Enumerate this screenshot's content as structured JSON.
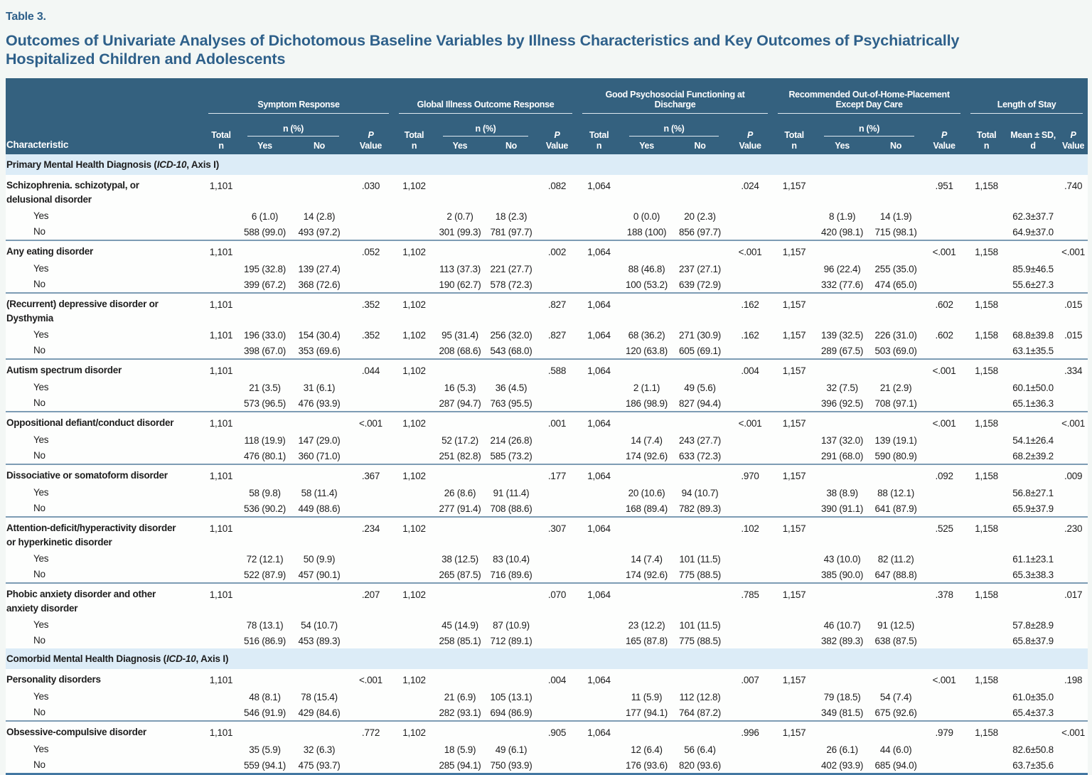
{
  "page": {
    "label": "Table 3.",
    "title": "Outcomes of Univariate Analyses of Dichotomous Baseline Variables by Illness Characteristics and Key Outcomes of Psychiatrically\nHospitalized Children and Adolescents"
  },
  "colors": {
    "header_band": "#34617f",
    "section_band": "#dcecf7",
    "title_blue": "#2e608a",
    "row_rule": "#7d9cb4",
    "bottom_rule": "#4377a2"
  },
  "header": {
    "characteristic": "Characteristic",
    "groups": [
      {
        "label": "Symptom Response"
      },
      {
        "label": "Global Illness Outcome Response"
      },
      {
        "label": "Good Psychosocial Functioning at\nDischarge"
      },
      {
        "label": "Recommended Out-of-Home-Placement\nExcept Day Care"
      },
      {
        "label": "Length of Stay"
      }
    ],
    "total": "Total",
    "n": "n",
    "npct": "n (%)",
    "yes": "Yes",
    "no": "No",
    "p": "P",
    "value": "Value",
    "mean": "Mean ± SD,",
    "mean2": "d"
  },
  "rows": [
    {
      "type": "section",
      "pre": "Primary Mental Health Diagnosis (",
      "italic": "ICD-10",
      "post": ", Axis I)"
    },
    {
      "type": "head",
      "sep": false,
      "label": "Schizophrenia. schizotypal, or\ndelusional disorder",
      "c": [
        "1,101",
        "",
        "",
        ".030",
        "1,102",
        "",
        "",
        ".082",
        "1,064",
        "",
        "",
        ".024",
        "1,157",
        "",
        "",
        ".951",
        "1,158",
        "",
        ".740"
      ]
    },
    {
      "type": "sub",
      "label": "Yes",
      "c": [
        "",
        "6 (1.0)",
        "14 (2.8)",
        "",
        "",
        "2 (0.7)",
        "18 (2.3)",
        "",
        "",
        "0 (0.0)",
        "20 (2.3)",
        "",
        "",
        "8 (1.9)",
        "14 (1.9)",
        "",
        "",
        "62.3±37.7",
        ""
      ]
    },
    {
      "type": "sub",
      "label": "No",
      "c": [
        "",
        "588 (99.0)",
        "493 (97.2)",
        "",
        "",
        "301 (99.3)",
        "781 (97.7)",
        "",
        "",
        "188 (100)",
        "856 (97.7)",
        "",
        "",
        "420 (98.1)",
        "715 (98.1)",
        "",
        "",
        "64.9±37.0",
        ""
      ]
    },
    {
      "type": "head",
      "sep": true,
      "label": "Any eating disorder",
      "c": [
        "1,101",
        "",
        "",
        ".052",
        "1,102",
        "",
        "",
        ".002",
        "1,064",
        "",
        "",
        "<.001",
        "1,157",
        "",
        "",
        "<.001",
        "1,158",
        "",
        "<.001"
      ]
    },
    {
      "type": "sub",
      "label": "Yes",
      "c": [
        "",
        "195 (32.8)",
        "139 (27.4)",
        "",
        "",
        "113 (37.3)",
        "221 (27.7)",
        "",
        "",
        "88 (46.8)",
        "237 (27.1)",
        "",
        "",
        "96 (22.4)",
        "255 (35.0)",
        "",
        "",
        "85.9±46.5",
        ""
      ]
    },
    {
      "type": "sub",
      "label": "No",
      "c": [
        "",
        "399 (67.2)",
        "368 (72.6)",
        "",
        "",
        "190 (62.7)",
        "578 (72.3)",
        "",
        "",
        "100 (53.2)",
        "639 (72.9)",
        "",
        "",
        "332 (77.6)",
        "474 (65.0)",
        "",
        "",
        "55.6±27.3",
        ""
      ]
    },
    {
      "type": "head",
      "sep": true,
      "label": "(Recurrent) depressive disorder or\nDysthymia",
      "c": [
        "1,101",
        "",
        "",
        ".352",
        "1,102",
        "",
        "",
        ".827",
        "1,064",
        "",
        "",
        ".162",
        "1,157",
        "",
        "",
        ".602",
        "1,158",
        "",
        ".015"
      ]
    },
    {
      "type": "sub",
      "label": "Yes",
      "c": [
        "1,101",
        "196 (33.0)",
        "154 (30.4)",
        ".352",
        "1,102",
        "95 (31.4)",
        "256 (32.0)",
        ".827",
        "1,064",
        "68 (36.2)",
        "271 (30.9)",
        ".162",
        "1,157",
        "139 (32.5)",
        "226 (31.0)",
        ".602",
        "1,158",
        "68.8±39.8",
        ".015"
      ]
    },
    {
      "type": "sub",
      "label": "No",
      "c": [
        "",
        "398 (67.0)",
        "353 (69.6)",
        "",
        "",
        "208 (68.6)",
        "543 (68.0)",
        "",
        "",
        "120 (63.8)",
        "605 (69.1)",
        "",
        "",
        "289 (67.5)",
        "503 (69.0)",
        "",
        "",
        "63.1±35.5",
        ""
      ]
    },
    {
      "type": "head",
      "sep": true,
      "label": "Autism spectrum disorder",
      "c": [
        "1,101",
        "",
        "",
        ".044",
        "1,102",
        "",
        "",
        ".588",
        "1,064",
        "",
        "",
        ".004",
        "1,157",
        "",
        "",
        "<.001",
        "1,158",
        "",
        ".334"
      ]
    },
    {
      "type": "sub",
      "label": "Yes",
      "c": [
        "",
        "21 (3.5)",
        "31 (6.1)",
        "",
        "",
        "16 (5.3)",
        "36 (4.5)",
        "",
        "",
        "2 (1.1)",
        "49 (5.6)",
        "",
        "",
        "32 (7.5)",
        "21 (2.9)",
        "",
        "",
        "60.1±50.0",
        ""
      ]
    },
    {
      "type": "sub",
      "label": "No",
      "c": [
        "",
        "573 (96.5)",
        "476 (93.9)",
        "",
        "",
        "287 (94.7)",
        "763 (95.5)",
        "",
        "",
        "186 (98.9)",
        "827 (94.4)",
        "",
        "",
        "396 (92.5)",
        "708 (97.1)",
        "",
        "",
        "65.1±36.3",
        ""
      ]
    },
    {
      "type": "head",
      "sep": true,
      "label": "Oppositional defiant/conduct disorder",
      "c": [
        "1,101",
        "",
        "",
        "<.001",
        "1,102",
        "",
        "",
        ".001",
        "1,064",
        "",
        "",
        "<.001",
        "1,157",
        "",
        "",
        "<.001",
        "1,158",
        "",
        "<.001"
      ]
    },
    {
      "type": "sub",
      "label": "Yes",
      "c": [
        "",
        "118 (19.9)",
        "147 (29.0)",
        "",
        "",
        "52 (17.2)",
        "214 (26.8)",
        "",
        "",
        "14 (7.4)",
        "243 (27.7)",
        "",
        "",
        "137 (32.0)",
        "139 (19.1)",
        "",
        "",
        "54.1±26.4",
        ""
      ]
    },
    {
      "type": "sub",
      "label": "No",
      "c": [
        "",
        "476 (80.1)",
        "360 (71.0)",
        "",
        "",
        "251 (82.8)",
        "585 (73.2)",
        "",
        "",
        "174 (92.6)",
        "633 (72.3)",
        "",
        "",
        "291 (68.0)",
        "590 (80.9)",
        "",
        "",
        "68.2±39.2",
        ""
      ]
    },
    {
      "type": "head",
      "sep": true,
      "label": "Dissociative or somatoform disorder",
      "c": [
        "1,101",
        "",
        "",
        ".367",
        "1,102",
        "",
        "",
        ".177",
        "1,064",
        "",
        "",
        ".970",
        "1,157",
        "",
        "",
        ".092",
        "1,158",
        "",
        ".009"
      ]
    },
    {
      "type": "sub",
      "label": "Yes",
      "c": [
        "",
        "58 (9.8)",
        "58 (11.4)",
        "",
        "",
        "26 (8.6)",
        "91 (11.4)",
        "",
        "",
        "20 (10.6)",
        "94 (10.7)",
        "",
        "",
        "38 (8.9)",
        "88 (12.1)",
        "",
        "",
        "56.8±27.1",
        ""
      ]
    },
    {
      "type": "sub",
      "label": "No",
      "c": [
        "",
        "536 (90.2)",
        "449 (88.6)",
        "",
        "",
        "277 (91.4)",
        "708 (88.6)",
        "",
        "",
        "168 (89.4)",
        "782 (89.3)",
        "",
        "",
        "390 (91.1)",
        "641 (87.9)",
        "",
        "",
        "65.9±37.9",
        ""
      ]
    },
    {
      "type": "head",
      "sep": true,
      "label": "Attention-deficit/hyperactivity disorder\nor hyperkinetic disorder",
      "c": [
        "1,101",
        "",
        "",
        ".234",
        "1,102",
        "",
        "",
        ".307",
        "1,064",
        "",
        "",
        ".102",
        "1,157",
        "",
        "",
        ".525",
        "1,158",
        "",
        ".230"
      ]
    },
    {
      "type": "sub",
      "label": "Yes",
      "c": [
        "",
        "72 (12.1)",
        "50 (9.9)",
        "",
        "",
        "38 (12.5)",
        "83 (10.4)",
        "",
        "",
        "14 (7.4)",
        "101 (11.5)",
        "",
        "",
        "43 (10.0)",
        "82 (11.2)",
        "",
        "",
        "61.1±23.1",
        ""
      ]
    },
    {
      "type": "sub",
      "label": "No",
      "c": [
        "",
        "522 (87.9)",
        "457 (90.1)",
        "",
        "",
        "265 (87.5)",
        "716 (89.6)",
        "",
        "",
        "174 (92.6)",
        "775 (88.5)",
        "",
        "",
        "385 (90.0)",
        "647 (88.8)",
        "",
        "",
        "65.3±38.3",
        ""
      ]
    },
    {
      "type": "head",
      "sep": true,
      "label": "Phobic anxiety disorder and other\nanxiety disorder",
      "c": [
        "1,101",
        "",
        "",
        ".207",
        "1,102",
        "",
        "",
        ".070",
        "1,064",
        "",
        "",
        ".785",
        "1,157",
        "",
        "",
        ".378",
        "1,158",
        "",
        ".017"
      ]
    },
    {
      "type": "sub",
      "label": "Yes",
      "c": [
        "",
        "78 (13.1)",
        "54 (10.7)",
        "",
        "",
        "45 (14.9)",
        "87 (10.9)",
        "",
        "",
        "23 (12.2)",
        "101 (11.5)",
        "",
        "",
        "46 (10.7)",
        "91 (12.5)",
        "",
        "",
        "57.8±28.9",
        ""
      ]
    },
    {
      "type": "sub",
      "label": "No",
      "c": [
        "",
        "516 (86.9)",
        "453 (89.3)",
        "",
        "",
        "258 (85.1)",
        "712 (89.1)",
        "",
        "",
        "165 (87.8)",
        "775 (88.5)",
        "",
        "",
        "382 (89.3)",
        "638 (87.5)",
        "",
        "",
        "65.8±37.9",
        ""
      ]
    },
    {
      "type": "section",
      "pre": "Comorbid Mental Health Diagnosis (",
      "italic": "ICD-10",
      "post": ", Axis I)"
    },
    {
      "type": "head",
      "sep": false,
      "label": "Personality disorders",
      "c": [
        "1,101",
        "",
        "",
        "<.001",
        "1,102",
        "",
        "",
        ".004",
        "1,064",
        "",
        "",
        ".007",
        "1,157",
        "",
        "",
        "<.001",
        "1,158",
        "",
        ".198"
      ]
    },
    {
      "type": "sub",
      "label": "Yes",
      "c": [
        "",
        "48 (8.1)",
        "78 (15.4)",
        "",
        "",
        "21 (6.9)",
        "105 (13.1)",
        "",
        "",
        "11 (5.9)",
        "112 (12.8)",
        "",
        "",
        "79 (18.5)",
        "54 (7.4)",
        "",
        "",
        "61.0±35.0",
        ""
      ]
    },
    {
      "type": "sub",
      "label": "No",
      "c": [
        "",
        "546 (91.9)",
        "429 (84.6)",
        "",
        "",
        "282 (93.1)",
        "694 (86.9)",
        "",
        "",
        "177 (94.1)",
        "764 (87.2)",
        "",
        "",
        "349 (81.5)",
        "675 (92.6)",
        "",
        "",
        "65.4±37.3",
        ""
      ]
    },
    {
      "type": "head",
      "sep": true,
      "label": "Obsessive-compulsive disorder",
      "c": [
        "1,101",
        "",
        "",
        ".772",
        "1,102",
        "",
        "",
        ".905",
        "1,064",
        "",
        "",
        ".996",
        "1,157",
        "",
        "",
        ".979",
        "1,158",
        "",
        "<.001"
      ]
    },
    {
      "type": "sub",
      "label": "Yes",
      "c": [
        "",
        "35 (5.9)",
        "32 (6.3)",
        "",
        "",
        "18 (5.9)",
        "49 (6.1)",
        "",
        "",
        "12 (6.4)",
        "56 (6.4)",
        "",
        "",
        "26 (6.1)",
        "44 (6.0)",
        "",
        "",
        "82.6±50.8",
        ""
      ]
    },
    {
      "type": "sub",
      "label": "No",
      "c": [
        "",
        "559 (94.1)",
        "475 (93.7)",
        "",
        "",
        "285 (94.1)",
        "750 (93.9)",
        "",
        "",
        "176 (93.6)",
        "820 (93.6)",
        "",
        "",
        "402 (93.9)",
        "685 (94.0)",
        "",
        "",
        "63.7±35.6",
        ""
      ]
    }
  ]
}
